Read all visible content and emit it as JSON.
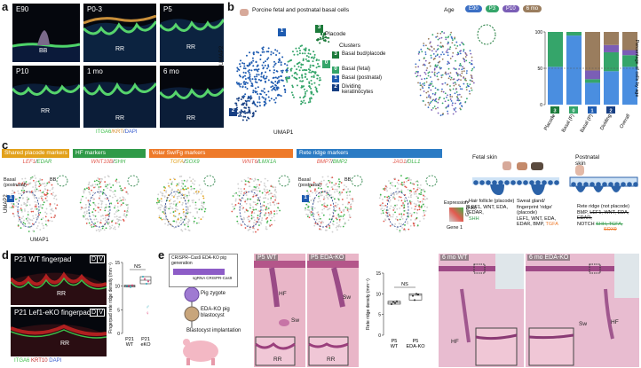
{
  "panels": {
    "a": "a",
    "b": "b",
    "c": "c",
    "d": "d",
    "e": "e"
  },
  "panel_a": {
    "tiles": [
      {
        "age": "E90",
        "mark": "BB"
      },
      {
        "age": "P0-3",
        "mark": "RR"
      },
      {
        "age": "P5",
        "mark": "RR"
      },
      {
        "age": "P10",
        "mark": "RR"
      },
      {
        "age": "1 mo",
        "mark": "RR"
      },
      {
        "age": "6 mo",
        "mark": "RR"
      }
    ],
    "stain": {
      "itga6": "ITGA6",
      "krt": "/KRT",
      "dapi": "DAPI"
    }
  },
  "panel_b": {
    "title": "Porcine fetal and postnatal basal cells",
    "age_label": "Age",
    "ages": [
      "E90",
      "P3",
      "P10",
      "6 mo"
    ],
    "age_colors": [
      "#3b6fc4",
      "#35a56a",
      "#7b5eb6",
      "#9a7d5e"
    ],
    "placode_label": "Placode",
    "umap1": "UMAP1",
    "umap2": "UMAP2",
    "clusters_title": "Clusters",
    "clusters": [
      {
        "num": "3",
        "label": "Basal bud/placode",
        "color": "#1c7a3a"
      },
      {
        "num": "0",
        "label": "Basal (fetal)",
        "color": "#35a56a"
      },
      {
        "num": "1",
        "label": "Basal (postnatal)",
        "color": "#1e5bb0"
      },
      {
        "num": "2",
        "label": "Dividing keratinocytes",
        "color": "#163e82"
      }
    ]
  },
  "chart_data": {
    "type": "bar",
    "ylabel": "Percentage of cells by age",
    "categories": [
      "Placode",
      "Basal (F)",
      "Basal (P)",
      "Dividing",
      "Overall"
    ],
    "category_nums": [
      "3",
      "0",
      "1",
      "2",
      ""
    ],
    "ylim": [
      0,
      100
    ],
    "series": [
      {
        "values": [
          52,
          95,
          30,
          46,
          52
        ],
        "color": "#4a8ee0"
      },
      {
        "values": [
          48,
          5,
          5,
          26,
          16
        ],
        "color": "#35a56a"
      },
      {
        "values": [
          0,
          0,
          12,
          10,
          7
        ],
        "color": "#7b5eb6"
      },
      {
        "values": [
          0,
          0,
          53,
          18,
          25
        ],
        "color": "#9a7d5e"
      }
    ],
    "yticks": [
      "0",
      "50",
      "100"
    ]
  },
  "panel_c": {
    "headers": [
      {
        "text": "Shared placode markers",
        "color": "#e2a11b"
      },
      {
        "text": "HF markers",
        "color": "#2f9a48"
      },
      {
        "text": "Volar Sw/Fg markers",
        "color": "#ee7a2a"
      },
      {
        "text": "Rete ridge markers",
        "color": "#2b7bc4"
      }
    ],
    "genes": [
      {
        "g1": "LEF1",
        "g2": "EDAR"
      },
      {
        "g1": "WNT10B",
        "g2": "SHH"
      },
      {
        "g1": "TGFA",
        "g2": "SOX9"
      },
      {
        "g1": "WNT6",
        "g2": "LMX1A"
      },
      {
        "g1": "BMP7",
        "g2": "BMP2"
      },
      {
        "g1": "JAG1",
        "g2": "DLL1"
      }
    ],
    "slash": "/",
    "basal_postnatal": "Basal (postnatal)",
    "bb": "BB",
    "umap1": "UMAP1",
    "umap2": "UMAP2",
    "expression": "Expression",
    "expr_scale": "(×10)",
    "gene1": "Gene 1",
    "gene2": "Gene 2",
    "fetal_skin": "Fetal skin",
    "postnatal_skin": "Postnatal skin",
    "hair_follicle": "Hair follicle (placode)",
    "hair_markers": "LEF1, WNT, EDA, EDAR,",
    "hair_shh": "SHH",
    "sweat_gland": "Sweat gland/ fingerprint 'ridge' (placode)",
    "sweat_markers": "LEF1, WNT, EDA, EDAR, BMP,",
    "sweat_tgfa": "TGFA",
    "rete_ridge": "Rete ridge (not placode)",
    "rete_bmp": "BMP,",
    "rete_notch": "NOTCH",
    "rete_strike": "LEF1, WNT, EDA, EDAR,",
    "rete_strike2": "SHH, TGFA,",
    "rete_strike3": "SOX9"
  },
  "panel_d": {
    "img1": "P21 WT fingerpad",
    "img2": "P21 Lef1-eKO fingerpad",
    "dv": [
      "D",
      "V"
    ],
    "rr": "RR",
    "stain": {
      "itga6": "ITGA6",
      "krt10": "KRT10",
      "dapi": "DAPI"
    },
    "ylabel": "Fingerpad rete ridge density (mm⁻¹)",
    "yticks": [
      "0",
      "5",
      "10",
      "15"
    ],
    "ns": "NS",
    "xlabels": [
      "P21 WT",
      "P21 eKO"
    ],
    "sex": [
      "♂",
      "♀"
    ],
    "wt_values": [
      10,
      10,
      9.8,
      10.2
    ],
    "eko_values": [
      12,
      11.5,
      10.5,
      11
    ]
  },
  "panel_e": {
    "crispr_title": "CRISPR–Cas9 EDA-KO pig generation",
    "eda": "EDA",
    "sgrna": "sgRNA CRISPR-Cas9",
    "pig_zygote": "Pig zygote",
    "blastocyst": "EDA-KO pig blastocyst",
    "implant": "Blastocyst implantation",
    "he_labels": [
      "P5 WT",
      "P5 EDA-KO",
      "6 mo WT",
      "6 mo EDA-KO"
    ],
    "hf": "HF",
    "sw": "Sw",
    "rr": "RR",
    "ylabel": "Rete ridge density (mm⁻¹)",
    "yticks": [
      "0",
      "5",
      "10",
      "15"
    ],
    "ns": "NS",
    "xlabels": [
      "P5 WT",
      "P5 EDA-KO"
    ],
    "wt_values": [
      7.5,
      8,
      7.8,
      8.2
    ],
    "ko_values": [
      9.5,
      8.5,
      10,
      9.8
    ]
  }
}
